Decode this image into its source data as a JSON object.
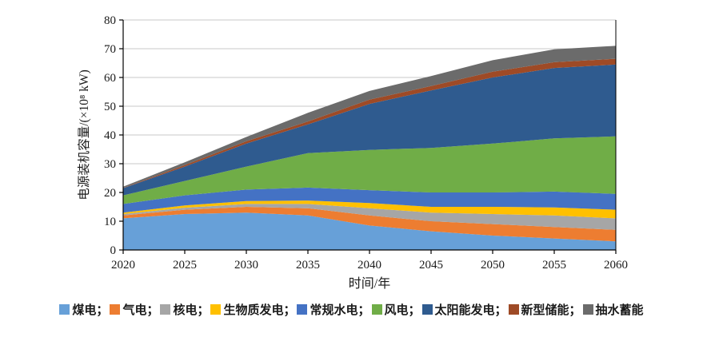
{
  "figure": {
    "background": "#ffffff",
    "axis_color": "#000000",
    "grid_color": "#c8c8c8",
    "text_color": "#1a1a1a"
  },
  "chart_data": {
    "type": "area",
    "stacked": true,
    "title": "",
    "xlabel": "时间/年",
    "ylabel": "电源装机容量/(×10⁸ kW)",
    "x": [
      2020,
      2025,
      2030,
      2035,
      2040,
      2045,
      2050,
      2055,
      2060
    ],
    "xlim": [
      2020,
      2060
    ],
    "ylim": [
      0,
      80
    ],
    "ytick_step": 10,
    "yticks": [
      0,
      10,
      20,
      30,
      40,
      50,
      60,
      70,
      80
    ],
    "grid": "horizontal",
    "legend_position": "bottom",
    "legend_separator": "；",
    "series": [
      {
        "id": "coal",
        "name": "煤电",
        "color": "#67A0D8",
        "values": [
          11.0,
          12.5,
          13.0,
          12.0,
          8.5,
          6.5,
          5.0,
          4.0,
          3.0
        ]
      },
      {
        "id": "gas",
        "name": "气电",
        "color": "#ED7D31",
        "values": [
          1.0,
          1.5,
          2.0,
          2.5,
          3.5,
          3.5,
          4.0,
          4.0,
          4.0
        ]
      },
      {
        "id": "nuclear",
        "name": "核电",
        "color": "#A6A6A6",
        "values": [
          0.5,
          0.7,
          1.0,
          1.5,
          2.5,
          3.0,
          3.5,
          4.0,
          4.0
        ]
      },
      {
        "id": "biomass",
        "name": "生物质发电",
        "color": "#FFC000",
        "values": [
          0.5,
          0.8,
          1.0,
          1.2,
          1.8,
          2.0,
          2.5,
          2.8,
          3.0
        ]
      },
      {
        "id": "hydro",
        "name": "常规水电",
        "color": "#4472C4",
        "values": [
          3.0,
          3.5,
          4.0,
          4.5,
          4.5,
          5.0,
          5.0,
          5.5,
          5.5
        ]
      },
      {
        "id": "wind",
        "name": "风电",
        "color": "#70AD47",
        "values": [
          3.0,
          5.0,
          8.0,
          12.0,
          14.0,
          15.5,
          17.0,
          18.5,
          20.0
        ]
      },
      {
        "id": "solar",
        "name": "太阳能发电",
        "color": "#2F5B8F",
        "values": [
          2.5,
          5.0,
          8.0,
          10.0,
          16.0,
          20.0,
          23.0,
          24.5,
          25.0
        ]
      },
      {
        "id": "new-storage",
        "name": "新型储能",
        "color": "#9E4A26",
        "values": [
          0.1,
          0.5,
          0.8,
          1.0,
          1.5,
          1.5,
          2.0,
          2.0,
          2.0
        ]
      },
      {
        "id": "pumped-storage",
        "name": "抽水蓄能",
        "color": "#6B6B6B",
        "values": [
          0.4,
          1.0,
          1.5,
          3.0,
          3.0,
          3.5,
          4.0,
          4.5,
          4.5
        ]
      }
    ]
  }
}
